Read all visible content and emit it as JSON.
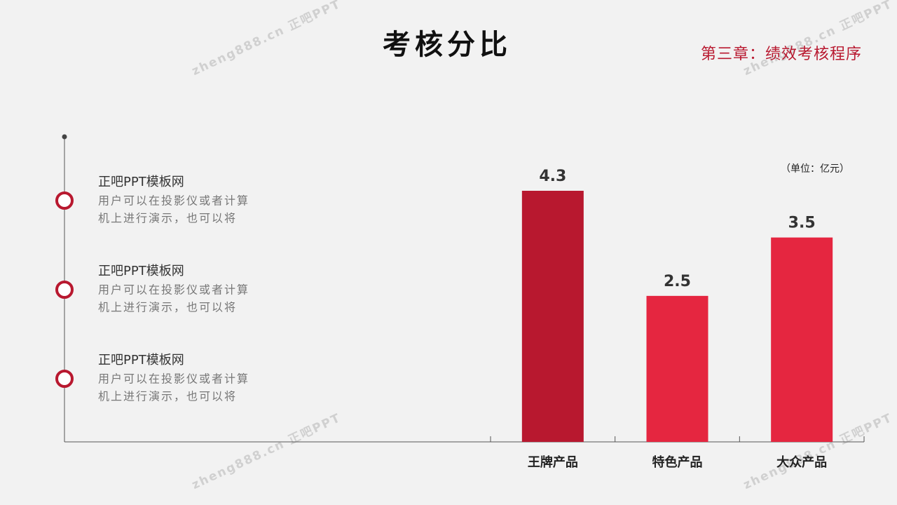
{
  "header": {
    "chapter": "第三章：绩效考核程序"
  },
  "watermark": "zheng888.cn 正吧PPT",
  "items": [
    {
      "title": "正吧PPT模板网",
      "lines": [
        "用户可以在投影仪或者计算",
        "机上进行演示，也可以将"
      ]
    },
    {
      "title": "正吧PPT模板网",
      "lines": [
        "用户可以在投影仪或者计算",
        "机上进行演示，也可以将"
      ]
    },
    {
      "title": "正吧PPT模板网",
      "lines": [
        "用户可以在投影仪或者计算",
        "机上进行演示，也可以将"
      ]
    }
  ],
  "chart_data": {
    "type": "bar",
    "title": "考核分比",
    "unit_label": "（单位：亿元）",
    "categories": [
      "王牌产品",
      "特色产品",
      "大众产品"
    ],
    "values": [
      4.3,
      2.5,
      3.5
    ],
    "colors": [
      "#b8182f",
      "#e52640",
      "#e52640"
    ]
  }
}
